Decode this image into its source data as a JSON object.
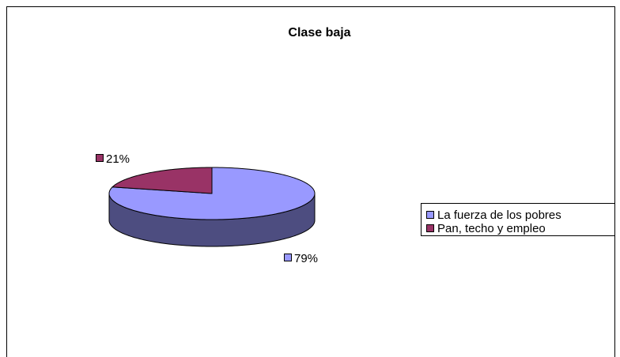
{
  "chart_data": {
    "type": "pie",
    "title": "Clase baja",
    "categories": [
      "La fuerza de los pobres",
      "Pan, techo y empleo"
    ],
    "values": [
      79,
      21
    ],
    "value_labels": [
      "79%",
      "21%"
    ],
    "colors": [
      "#9999ff",
      "#993366"
    ],
    "legend": "right"
  }
}
